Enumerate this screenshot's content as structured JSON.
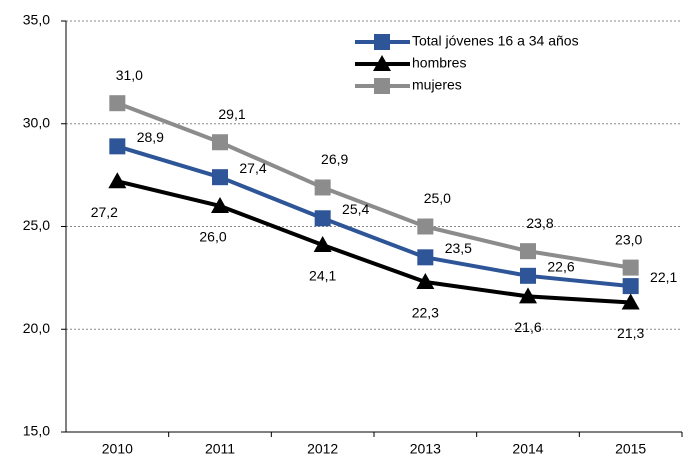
{
  "chart_data": {
    "type": "line",
    "categories": [
      "2010",
      "2011",
      "2012",
      "2013",
      "2014",
      "2015"
    ],
    "series": [
      {
        "name": "Total jóvenes 16 a 34 años",
        "color": "#2e5597",
        "marker": "square",
        "values": [
          28.9,
          27.4,
          25.4,
          23.5,
          22.6,
          22.1
        ],
        "value_labels": [
          "28,9",
          "27,4",
          "25,4",
          "23,5",
          "22,6",
          "22,1"
        ]
      },
      {
        "name": "hombres",
        "color": "#000000",
        "marker": "triangle",
        "values": [
          27.2,
          26.0,
          24.1,
          22.3,
          21.6,
          21.3
        ],
        "value_labels": [
          "27,2",
          "26,0",
          "24,1",
          "22,3",
          "21,6",
          "21,3"
        ]
      },
      {
        "name": "mujeres",
        "color": "#8c8c8c",
        "marker": "square",
        "values": [
          31.0,
          29.1,
          26.9,
          25.0,
          23.8,
          23.0
        ],
        "value_labels": [
          "31,0",
          "29,1",
          "26,9",
          "25,0",
          "23,8",
          "23,0"
        ]
      }
    ],
    "ylim": [
      15,
      35
    ],
    "yticks": [
      {
        "value": 15,
        "label": "15,0"
      },
      {
        "value": 20,
        "label": "20,0"
      },
      {
        "value": 25,
        "label": "25,0"
      },
      {
        "value": 30,
        "label": "30,0"
      },
      {
        "value": 35,
        "label": "35,0"
      }
    ],
    "grid": true,
    "legend": "top-right"
  }
}
